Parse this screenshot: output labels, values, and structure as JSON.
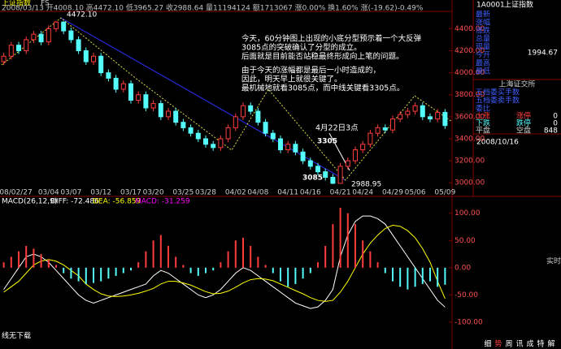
{
  "chart_data": [
    {
      "type": "candlestick",
      "title": "上证指数",
      "subtitle": "FS",
      "info": "2008/03/13 开4008.10 高4472.10 低3965.27 收2988.64 量11194124 额1713067 涨0.00% 换1.60% 涨(-19.62)-0.49%",
      "categories": [
        null,
        "2008/02/27",
        null,
        null,
        null,
        null,
        "03/04",
        null,
        null,
        "03/07",
        null,
        null,
        null,
        "03/12",
        null,
        null,
        null,
        "03/17",
        null,
        null,
        "03/20",
        null,
        null,
        null,
        "03/25",
        null,
        null,
        "03/28",
        null,
        null,
        null,
        "04/02",
        null,
        null,
        "04/08",
        null,
        null,
        null,
        "04/11",
        null,
        null,
        "04/16",
        null,
        null,
        null,
        "04/21",
        null,
        null,
        "04/24",
        null,
        null,
        null,
        "04/29",
        null,
        null,
        "05/06",
        null,
        null,
        null,
        "05/09"
      ],
      "open": [
        4100,
        4150,
        4250,
        4200,
        4300,
        4350,
        4280,
        4400,
        4460,
        4380,
        4300,
        4200,
        4100,
        4150,
        4000,
        3950,
        3850,
        3900,
        3750,
        3800,
        3680,
        3720,
        3600,
        3650,
        3550,
        3500,
        3450,
        3400,
        3350,
        3320,
        3400,
        3500,
        3600,
        3700,
        3650,
        3550,
        3450,
        3400,
        3300,
        3350,
        3280,
        3200,
        3150,
        3100,
        3050,
        2995,
        3150,
        3200,
        3300,
        3350,
        3450,
        3500,
        3480,
        3580,
        3620,
        3650,
        3700,
        3600,
        3580,
        3640
      ],
      "high": [
        4180,
        4280,
        4280,
        4330,
        4380,
        4380,
        4430,
        4472.1,
        4470,
        4410,
        4330,
        4230,
        4180,
        4180,
        4030,
        3980,
        3930,
        3930,
        3830,
        3830,
        3750,
        3750,
        3680,
        3680,
        3580,
        3530,
        3480,
        3430,
        3380,
        3430,
        3530,
        3630,
        3730,
        3730,
        3680,
        3580,
        3480,
        3430,
        3380,
        3380,
        3310,
        3230,
        3180,
        3130,
        3080,
        3180,
        3230,
        3330,
        3380,
        3480,
        3530,
        3530,
        3610,
        3650,
        3680,
        3730,
        3730,
        3630,
        3670,
        3670
      ],
      "low": [
        4070,
        4120,
        4170,
        4170,
        4270,
        4250,
        4250,
        4370,
        4350,
        4270,
        4170,
        4070,
        4070,
        3970,
        3920,
        3820,
        3820,
        3720,
        3720,
        3650,
        3650,
        3570,
        3570,
        3520,
        3470,
        3420,
        3370,
        3320,
        3290,
        3290,
        3370,
        3470,
        3570,
        3620,
        3520,
        3420,
        3370,
        3270,
        3270,
        3250,
        3170,
        3120,
        3070,
        3020,
        2988.95,
        2992,
        3120,
        3170,
        3270,
        3320,
        3420,
        3450,
        3450,
        3550,
        3590,
        3620,
        3570,
        3550,
        3550,
        3490
      ],
      "close": [
        4150,
        4250,
        4200,
        4300,
        4350,
        4280,
        4400,
        4460,
        4380,
        4300,
        4200,
        4100,
        4150,
        4000,
        3950,
        3850,
        3900,
        3750,
        3800,
        3680,
        3720,
        3600,
        3650,
        3550,
        3500,
        3450,
        3400,
        3350,
        3320,
        3400,
        3500,
        3600,
        3700,
        3650,
        3550,
        3450,
        3400,
        3300,
        3350,
        3280,
        3200,
        3150,
        3100,
        3050,
        2995,
        3150,
        3200,
        3300,
        3350,
        3450,
        3500,
        3480,
        3580,
        3620,
        3650,
        3700,
        3600,
        3580,
        3640,
        3520
      ],
      "up_color": "#ff3c3c",
      "down_color": "#54fcfc",
      "ylim": [
        2950,
        4550
      ],
      "yticks": [
        {
          "value": 3000,
          "label": "3000.00"
        },
        {
          "value": 3200,
          "label": "3200.00"
        },
        {
          "value": 3400,
          "label": "3400.00"
        },
        {
          "value": 3600,
          "label": "3600.00"
        },
        {
          "value": 3800,
          "label": "3800.00"
        },
        {
          "value": 4000,
          "label": "4000.00"
        },
        {
          "value": 4200,
          "label": "4200.00"
        },
        {
          "value": 4400,
          "label": "4400.00"
        }
      ],
      "peak_label": "4472.10",
      "low_label": "2988.95",
      "annotations": [
        "今天，60分钟图上出现的小底分型预示着一个大反弹",
        "3085点的突破确认了分型的成立。",
        "后面就是目前能否站稳最终形成向上笔的问题。",
        "由于今天的涨幅都是最后一小时造成的，",
        "因此，明天早上就很关键了。",
        "最机械地就看3085点，而中线关键看3305点。"
      ],
      "marks": [
        "4月22日3点",
        "3305",
        "3085"
      ]
    },
    {
      "type": "macd",
      "title": "MACD(26,12,9)",
      "series": [
        {
          "name": "DIFF: -72.486",
          "color": "#ffffff",
          "values": [
            -40,
            -20,
            0,
            20,
            25,
            20,
            10,
            -5,
            -20,
            -35,
            -50,
            -60,
            -65,
            -60,
            -55,
            -50,
            -45,
            -40,
            -35,
            -30,
            -15,
            -5,
            -10,
            -20,
            -30,
            -40,
            -50,
            -55,
            -50,
            -40,
            -25,
            -10,
            0,
            -5,
            -15,
            -25,
            -35,
            -45,
            -55,
            -65,
            -70,
            -75,
            -72,
            -60,
            -40,
            20,
            60,
            85,
            95,
            95,
            90,
            80,
            60,
            40,
            20,
            0,
            -20,
            -40,
            -60,
            -72.486
          ]
        },
        {
          "name": "DEA: -56.859",
          "color": "#ffff00",
          "values": [
            -45,
            -35,
            -25,
            -10,
            5,
            12,
            15,
            12,
            5,
            -5,
            -15,
            -30,
            -40,
            -48,
            -52,
            -53,
            -52,
            -50,
            -47,
            -43,
            -38,
            -30,
            -25,
            -25,
            -28,
            -32,
            -38,
            -44,
            -48,
            -47,
            -43,
            -36,
            -28,
            -22,
            -20,
            -21,
            -24,
            -30,
            -36,
            -42,
            -48,
            -55,
            -60,
            -62,
            -60,
            -45,
            -25,
            0,
            25,
            45,
            60,
            72,
            78,
            76,
            68,
            55,
            35,
            10,
            -25,
            -56.859
          ]
        },
        {
          "name": "MACD: -31.259",
          "color": "#ff00ff",
          "up_color": "#ff3c3c",
          "down_color": "#54fcfc",
          "values": [
            10,
            20,
            30,
            40,
            35,
            25,
            15,
            5,
            -10,
            -20,
            -25,
            -30,
            -28,
            -25,
            -20,
            -15,
            -10,
            -5,
            10,
            30,
            50,
            60,
            40,
            20,
            5,
            -10,
            -15,
            -10,
            -5,
            10,
            30,
            50,
            55,
            40,
            20,
            5,
            -10,
            -25,
            -35,
            -30,
            -20,
            -10,
            10,
            40,
            80,
            110,
            100,
            80,
            50,
            30,
            10,
            -10,
            -25,
            -35,
            -40,
            -35,
            -30,
            -25,
            -35,
            -31.259
          ]
        }
      ],
      "ylim": [
        -127,
        119
      ],
      "yticks": [
        {
          "value": -100,
          "label": "-100.00"
        },
        {
          "value": -50,
          "label": "-50.00"
        },
        {
          "value": 0,
          "label": "0.00"
        },
        {
          "value": 50,
          "label": "50.00"
        },
        {
          "value": 100,
          "label": "100.00"
        }
      ],
      "footer": "线无下载"
    }
  ],
  "side_panel": {
    "code": "1A0001",
    "name": "上证指数",
    "labels": [
      "最新",
      "涨幅",
      "涨跌",
      "总量",
      "现量",
      "今开",
      "最高",
      "最低"
    ],
    "open_value": "1994.67",
    "exchange": "上海证交所",
    "rows": [
      "五档委买手数",
      "五档委卖手数",
      "委比"
    ],
    "stats": [
      [
        "上涨",
        "涨停",
        "0"
      ],
      [
        "下跌",
        "跌停",
        "0"
      ],
      [
        "平盘",
        "空盘",
        "848"
      ]
    ],
    "date": "2008/10/16",
    "mode": "实时"
  },
  "tabs": [
    "细",
    "势",
    "周",
    "讯",
    "成",
    "特",
    "解"
  ]
}
